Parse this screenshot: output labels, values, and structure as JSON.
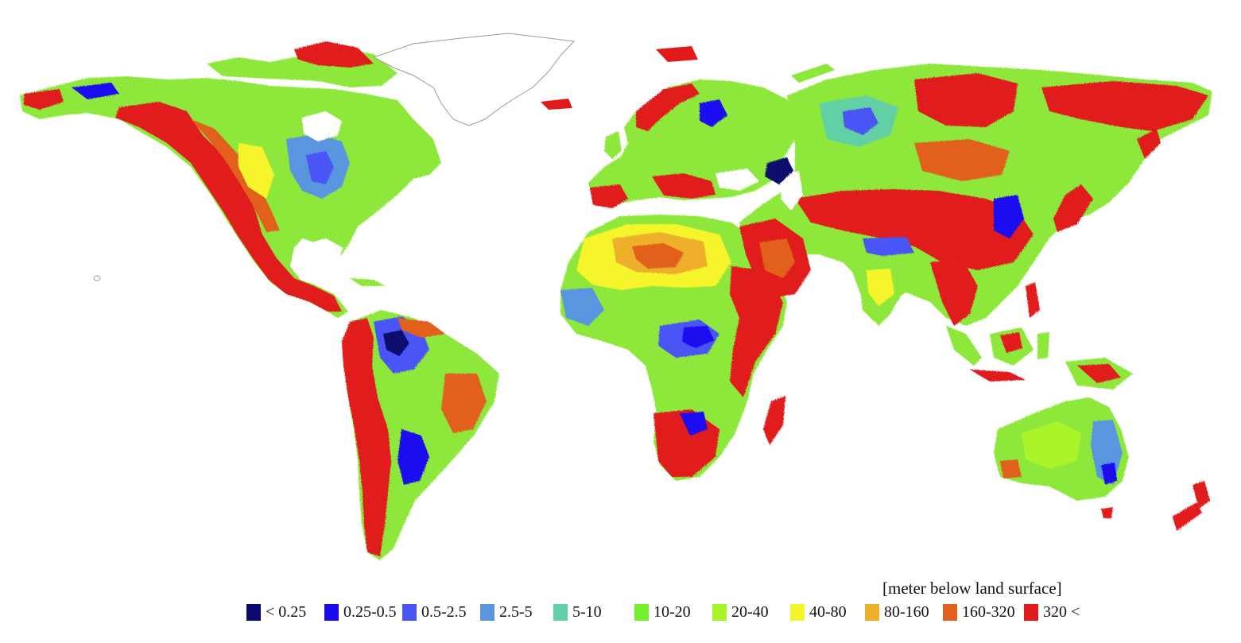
{
  "map": {
    "unit_label": "[meter below land surface]",
    "ocean_color": "#ffffff",
    "greenland_outline_color": "#9a9a9a",
    "legend": [
      {
        "label": "< 0.25",
        "color": "#0c0a6e"
      },
      {
        "label": "0.25-0.5",
        "color": "#1a0af0"
      },
      {
        "label": "0.5-2.5",
        "color": "#4a55f5"
      },
      {
        "label": "2.5-5",
        "color": "#5a96e0"
      },
      {
        "label": "5-10",
        "color": "#62cfa4"
      },
      {
        "label": "10-20",
        "color": "#74f02e"
      },
      {
        "label": "20-40",
        "color": "#aaf42a"
      },
      {
        "label": "40-80",
        "color": "#f6f42a"
      },
      {
        "label": "80-160",
        "color": "#eeb02a"
      },
      {
        "label": "160-320",
        "color": "#e0601e"
      },
      {
        "label": "320 <",
        "color": "#e01a1a"
      }
    ]
  }
}
